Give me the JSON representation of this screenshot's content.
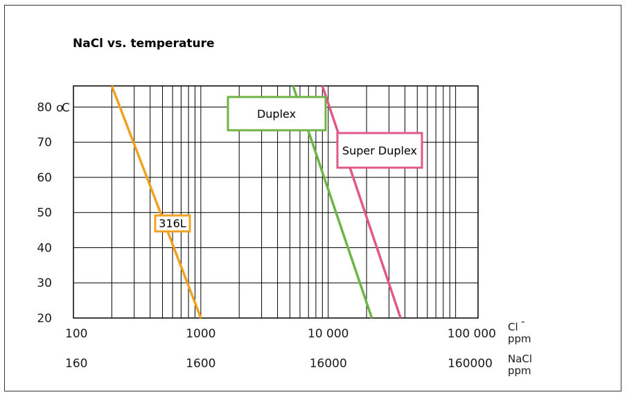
{
  "chart_data": {
    "type": "line",
    "title": "NaCl vs. temperature",
    "x_scale": "log",
    "xlim": [
      100,
      150000
    ],
    "ylim": [
      20,
      86
    ],
    "grid": true,
    "y_ticks": [
      {
        "value": 80,
        "label": "80"
      },
      {
        "value": 70,
        "label": "70"
      },
      {
        "value": 60,
        "label": "60"
      },
      {
        "value": 50,
        "label": "50"
      },
      {
        "value": 40,
        "label": "40"
      },
      {
        "value": 30,
        "label": "30"
      },
      {
        "value": 20,
        "label": "20"
      }
    ],
    "y_unit_degree": "o",
    "y_unit_letter": "C",
    "x_ticks_cl": [
      {
        "value": 100,
        "label": "100"
      },
      {
        "value": 1000,
        "label": "1000"
      },
      {
        "value": 10000,
        "label": "10 000"
      },
      {
        "value": 100000,
        "label": "100 000"
      }
    ],
    "x_ticks_nacl": [
      {
        "value": 100,
        "label": "160"
      },
      {
        "value": 1000,
        "label": "1600"
      },
      {
        "value": 10000,
        "label": "16000"
      },
      {
        "value": 100000,
        "label": "160000"
      }
    ],
    "x_unit_cl": {
      "symbol": "Cl",
      "superscript": "-",
      "unit": "ppm"
    },
    "x_unit_nacl": {
      "symbol": "NaCl",
      "unit": "ppm"
    },
    "series": [
      {
        "name": "316L",
        "color": "#f2a020",
        "points": [
          [
            200,
            86
          ],
          [
            1000,
            20
          ]
        ]
      },
      {
        "name": "Duplex",
        "color": "#6cb545",
        "points": [
          [
            5300,
            86
          ],
          [
            22000,
            20
          ]
        ]
      },
      {
        "name": "Super Duplex",
        "color": "#e0588a",
        "points": [
          [
            9000,
            86
          ],
          [
            37000,
            20
          ]
        ]
      }
    ]
  }
}
